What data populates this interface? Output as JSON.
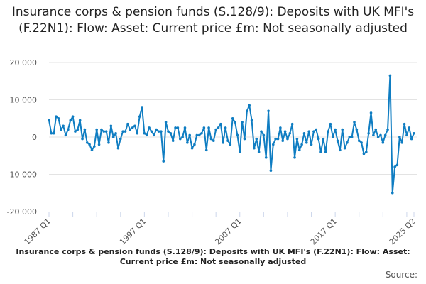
{
  "chart_data": {
    "type": "line",
    "title": "Insurance corps & pension funds (S.128/9): Deposits with UK MFI's (F.22N1): Flow: Asset: Current price £m: Not seasonally adjusted",
    "xlabel": "Insurance corps & pension funds (S.128/9): Deposits with UK MFI's (F.22N1): Flow: Asset: Current price £m: Not seasonally adjusted",
    "ylabel": "",
    "start": "1987 Q1",
    "end": "2025 Q2",
    "x_tick_labels": [
      "1987 Q1",
      "1997 Q1",
      "2007 Q1",
      "2017 Q1",
      "2025 Q2"
    ],
    "y_tick_labels": [
      "20 000",
      "10 000",
      "0",
      "-10 000",
      "-20 000"
    ],
    "ylim": [
      -20000,
      20000
    ],
    "grid": true,
    "color": "#0f7dc2",
    "series": [
      {
        "name": "Insurance corps & pension funds deposits flow",
        "values": [
          4500,
          1000,
          1000,
          5500,
          5000,
          2000,
          3000,
          500,
          2000,
          4500,
          5500,
          1500,
          2000,
          4500,
          -500,
          2000,
          -1500,
          -2000,
          -3500,
          -2500,
          2000,
          -2000,
          2000,
          1500,
          1500,
          -1500,
          3000,
          0,
          1000,
          -3000,
          -500,
          1500,
          1500,
          3500,
          2000,
          2500,
          3000,
          1000,
          5500,
          8000,
          1000,
          500,
          2500,
          1500,
          500,
          2000,
          1500,
          1500,
          -6500,
          4000,
          1500,
          1000,
          -1000,
          2500,
          2500,
          -500,
          0,
          2500,
          -1500,
          500,
          -3000,
          -2000,
          500,
          500,
          1000,
          2500,
          -3500,
          2500,
          -500,
          -1000,
          2000,
          2500,
          3500,
          -1500,
          2500,
          -1000,
          -2000,
          5000,
          4000,
          500,
          -4000,
          4000,
          -500,
          7000,
          8500,
          4500,
          -3000,
          -500,
          -4000,
          1500,
          500,
          -5500,
          7000,
          -9000,
          -2000,
          -500,
          -500,
          2500,
          -1000,
          1500,
          -500,
          1000,
          3500,
          -5500,
          -500,
          -3500,
          -2000,
          1000,
          -1500,
          1500,
          -2000,
          1500,
          2000,
          -500,
          -4000,
          -500,
          -4000,
          1500,
          3500,
          0,
          2000,
          -1000,
          -3500,
          2000,
          -3000,
          -1500,
          0,
          0,
          4000,
          2000,
          -1000,
          -1500,
          -4500,
          -4000,
          1000,
          6500,
          500,
          2000,
          0,
          500,
          -1500,
          500,
          2000,
          16500,
          -15000,
          -8000,
          -7500,
          0,
          -1500,
          3500,
          500,
          2500,
          -500,
          1000
        ]
      }
    ]
  },
  "source_label": "Source:"
}
